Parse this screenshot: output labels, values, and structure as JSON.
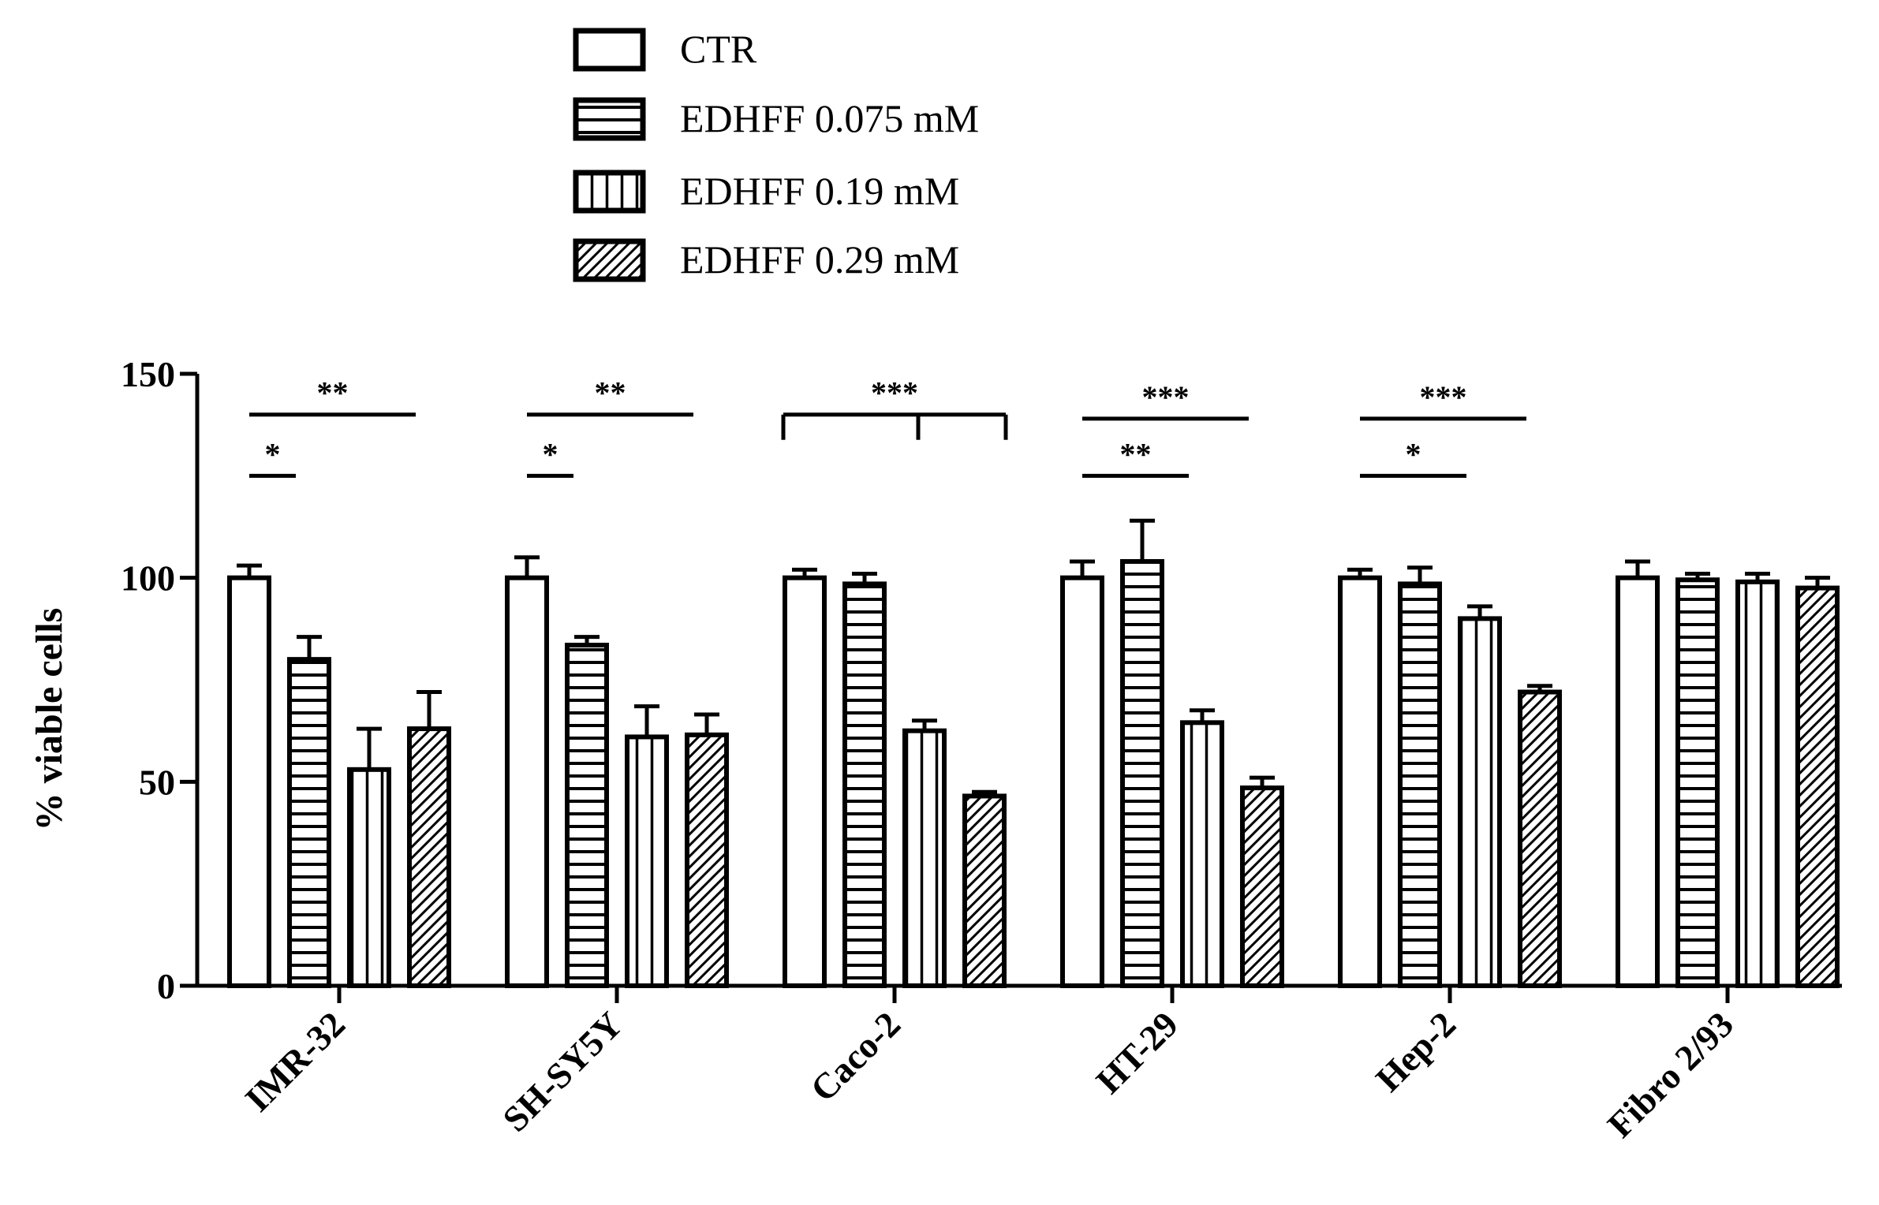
{
  "chart_data": {
    "type": "bar",
    "title": "",
    "xlabel": "",
    "ylabel": "% viable cells",
    "ylim": [
      0,
      150
    ],
    "yticks": [
      0,
      50,
      100,
      150
    ],
    "categories": [
      "IMR-32",
      "SH-SY5Y",
      "Caco-2",
      "HT-29",
      "Hep-2",
      "Fibro 2/93"
    ],
    "series": [
      {
        "name": "CTR",
        "pattern": "none",
        "values": [
          100,
          100,
          100,
          100,
          100,
          100
        ],
        "errors": [
          3,
          5,
          2,
          4,
          2,
          4
        ]
      },
      {
        "name": "EDHFF 0.075 mM",
        "pattern": "horizontal",
        "values": [
          80,
          83.5,
          98.5,
          104,
          98.5,
          99.5
        ],
        "errors": [
          5.5,
          2,
          2.5,
          10,
          4,
          1.5
        ]
      },
      {
        "name": "EDHFF 0.19 mM",
        "pattern": "vertical",
        "values": [
          53,
          61,
          62.5,
          64.5,
          90,
          99
        ],
        "errors": [
          10,
          7.5,
          2.5,
          3,
          3,
          2
        ]
      },
      {
        "name": "EDHFF 0.29 mM",
        "pattern": "diagonal",
        "values": [
          63,
          61.5,
          46.5,
          48.5,
          72,
          97.5
        ],
        "errors": [
          9,
          5,
          1,
          2.5,
          1.5,
          2.5
        ]
      }
    ],
    "significance": [
      {
        "category": 0,
        "label": "**",
        "from": 0,
        "to": 3,
        "level": 140,
        "style": "line"
      },
      {
        "category": 0,
        "label": "*",
        "from": 0,
        "to": 1,
        "level": 125,
        "style": "line"
      },
      {
        "category": 1,
        "label": "**",
        "from": 0,
        "to": 3,
        "level": 140,
        "style": "line"
      },
      {
        "category": 1,
        "label": "*",
        "from": 0,
        "to": 1,
        "level": 125,
        "style": "line"
      },
      {
        "category": 2,
        "label": "***",
        "from": 0,
        "to": 3,
        "level": 140,
        "style": "bracket",
        "mid": 2
      },
      {
        "category": 3,
        "label": "***",
        "from": 0,
        "to": 3,
        "level": 139,
        "style": "line"
      },
      {
        "category": 3,
        "label": "**",
        "from": 0,
        "to": 2,
        "level": 125,
        "style": "line"
      },
      {
        "category": 4,
        "label": "***",
        "from": 0,
        "to": 3,
        "level": 139,
        "style": "line"
      },
      {
        "category": 4,
        "label": "*",
        "from": 0,
        "to": 2,
        "level": 125,
        "style": "line"
      }
    ],
    "legend_position": "top-center"
  }
}
